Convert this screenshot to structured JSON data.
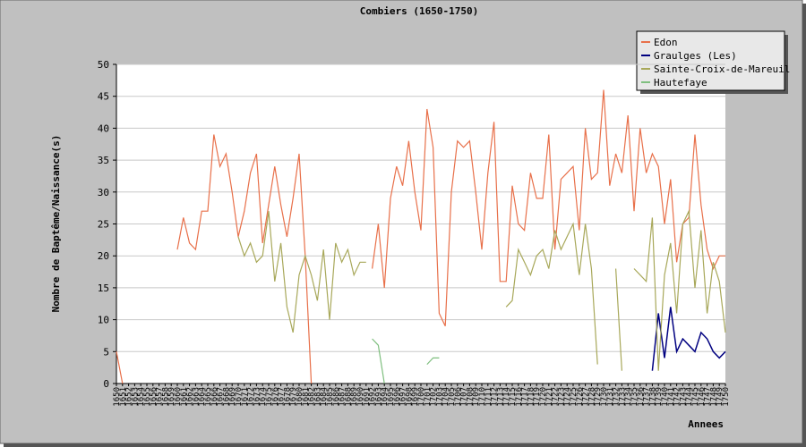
{
  "chart_data": {
    "type": "line",
    "title": "Combiers (1650-1750)",
    "x_label": "Annees",
    "y_label": "Nombre de Baptême/Naissance(s)",
    "categories": [
      "1650",
      "1651",
      "1652",
      "1653",
      "1654",
      "1655",
      "1656",
      "1657",
      "1658",
      "1659",
      "1660",
      "1661",
      "1662",
      "1663",
      "1664",
      "1665",
      "1666",
      "1667",
      "1668",
      "1669",
      "1670",
      "1671",
      "1672",
      "1673",
      "1674",
      "1675",
      "1676",
      "1677",
      "1678",
      "1679",
      "1680",
      "1681",
      "1682",
      "1683",
      "1684",
      "1685",
      "1686",
      "1687",
      "1688",
      "1689",
      "1690",
      "1691",
      "1692",
      "1693",
      "1694",
      "1695",
      "1696",
      "1697",
      "1698",
      "1699",
      "1700",
      "1701",
      "1702",
      "1703",
      "1704",
      "1705",
      "1706",
      "1707",
      "1708",
      "1709",
      "1710",
      "1711",
      "1712",
      "1713",
      "1714",
      "1715",
      "1716",
      "1717",
      "1718",
      "1719",
      "1720",
      "1721",
      "1722",
      "1723",
      "1724",
      "1725",
      "1726",
      "1727",
      "1728",
      "1729",
      "1730",
      "1731",
      "1732",
      "1733",
      "1734",
      "1735",
      "1736",
      "1737",
      "1738",
      "1739",
      "1740",
      "1741",
      "1742",
      "1743",
      "1744",
      "1745",
      "1746",
      "1747",
      "1748",
      "1749",
      "1750"
    ],
    "ylim": [
      0,
      50
    ],
    "yticks": [
      0,
      5,
      10,
      15,
      20,
      25,
      30,
      35,
      40,
      45,
      50
    ],
    "grid": true,
    "legend": "upper right",
    "series": [
      {
        "name": "Edon",
        "color": "#e8704a",
        "values": [
          5,
          0,
          null,
          null,
          null,
          null,
          null,
          null,
          null,
          null,
          21,
          26,
          22,
          21,
          27,
          27,
          39,
          34,
          36,
          30,
          23,
          27,
          33,
          36,
          22,
          28,
          34,
          28,
          23,
          29,
          36,
          20,
          0,
          null,
          null,
          null,
          null,
          null,
          null,
          null,
          null,
          null,
          18,
          25,
          15,
          29,
          34,
          31,
          38,
          30,
          24,
          43,
          37,
          11,
          9,
          30,
          38,
          37,
          38,
          30,
          21,
          33,
          41,
          16,
          16,
          31,
          25,
          24,
          33,
          29,
          29,
          39,
          21,
          32,
          33,
          34,
          24,
          40,
          32,
          33,
          46,
          31,
          36,
          33,
          42,
          27,
          40,
          33,
          36,
          34,
          25,
          32,
          19,
          25,
          26,
          39,
          28,
          21,
          18,
          20,
          20
        ]
      },
      {
        "name": "Graulges (Les)",
        "color": "#000080",
        "values": [
          null,
          null,
          null,
          null,
          null,
          null,
          null,
          null,
          null,
          null,
          null,
          null,
          null,
          null,
          null,
          null,
          null,
          null,
          null,
          null,
          null,
          null,
          null,
          null,
          null,
          null,
          null,
          null,
          null,
          null,
          null,
          null,
          null,
          null,
          null,
          null,
          null,
          null,
          null,
          null,
          null,
          null,
          null,
          null,
          null,
          null,
          null,
          null,
          null,
          null,
          null,
          null,
          null,
          null,
          null,
          null,
          null,
          null,
          null,
          null,
          null,
          null,
          null,
          null,
          null,
          null,
          null,
          null,
          null,
          null,
          null,
          null,
          null,
          null,
          null,
          null,
          null,
          null,
          null,
          null,
          null,
          null,
          null,
          null,
          null,
          null,
          null,
          null,
          2,
          11,
          4,
          12,
          5,
          7,
          6,
          5,
          8,
          7,
          5,
          4,
          5
        ]
      },
      {
        "name": "Sainte-Croix-de-Mareuil",
        "color": "#a8a85a",
        "values": [
          null,
          null,
          null,
          null,
          null,
          null,
          null,
          null,
          null,
          null,
          null,
          null,
          null,
          null,
          null,
          null,
          null,
          null,
          null,
          null,
          23,
          20,
          22,
          19,
          20,
          27,
          16,
          22,
          12,
          8,
          17,
          20,
          17,
          13,
          21,
          10,
          22,
          19,
          21,
          17,
          19,
          19,
          null,
          null,
          null,
          null,
          null,
          null,
          null,
          null,
          null,
          null,
          null,
          null,
          null,
          null,
          null,
          null,
          null,
          null,
          null,
          null,
          null,
          null,
          12,
          13,
          21,
          19,
          17,
          20,
          21,
          18,
          24,
          21,
          23,
          25,
          17,
          25,
          18,
          3,
          null,
          null,
          18,
          2,
          null,
          18,
          17,
          16,
          26,
          2,
          17,
          22,
          11,
          25,
          27,
          15,
          24,
          11,
          19,
          16,
          8
        ]
      },
      {
        "name": "Hautefaye",
        "color": "#7fbf7f",
        "values": [
          null,
          null,
          null,
          null,
          null,
          null,
          null,
          null,
          null,
          null,
          null,
          null,
          null,
          null,
          null,
          null,
          null,
          null,
          null,
          null,
          null,
          null,
          null,
          null,
          null,
          null,
          null,
          null,
          null,
          null,
          null,
          null,
          null,
          null,
          null,
          null,
          null,
          null,
          null,
          null,
          null,
          null,
          7,
          6,
          0,
          null,
          null,
          null,
          null,
          null,
          null,
          3,
          4,
          4,
          null,
          null,
          null,
          null,
          null,
          null,
          null,
          null,
          null,
          null,
          null,
          null,
          null,
          null,
          null,
          null,
          null,
          null,
          null,
          null,
          null,
          null,
          null,
          null,
          null,
          null,
          null,
          null,
          null,
          null,
          null,
          null,
          null,
          null,
          null,
          null,
          null,
          null,
          null,
          null,
          null,
          null,
          null,
          null,
          null,
          null,
          null
        ]
      }
    ]
  }
}
